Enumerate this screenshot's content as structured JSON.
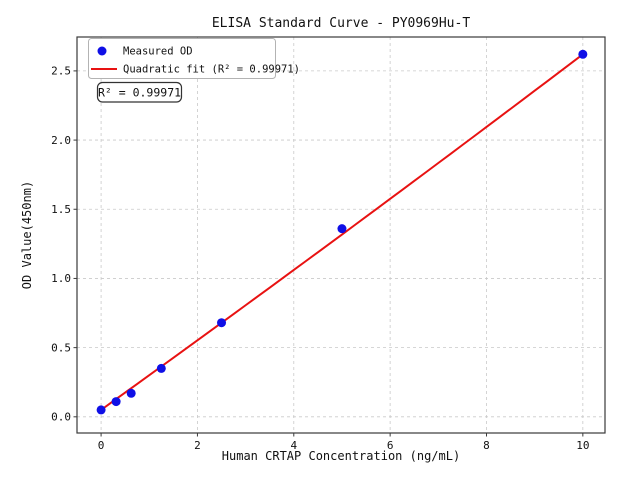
{
  "figure": {
    "title": "ELISA Standard Curve - PY0969Hu-T",
    "annotation": "R² = 0.99971",
    "legend": {
      "measured_label": "Measured OD",
      "fit_label": "Quadratic fit (R² = 0.99971)"
    }
  },
  "colors": {
    "point": "#0f0fe6",
    "fit_line": "#e81212",
    "grid": "#c9c9c9",
    "spine": "#3a3a3a",
    "legend_border": "#b3b3b3",
    "annotation_border": "#333333",
    "background": "#ffffff"
  },
  "chart_data": {
    "type": "scatter",
    "title": "ELISA Standard Curve - PY0969Hu-T",
    "xlabel": "Human CRTAP Concentration (ng/mL)",
    "ylabel": "OD Value(450nm)",
    "xlim": [
      -0.5,
      10.46
    ],
    "ylim": [
      -0.117,
      2.745
    ],
    "xticks": [
      0,
      2,
      4,
      6,
      8,
      10
    ],
    "yticks": [
      0,
      0.5,
      1,
      1.5,
      2,
      2.5
    ],
    "grid": true,
    "legend_position": "upper left",
    "annotation": "R² = 0.99971",
    "series": [
      {
        "name": "Measured OD",
        "type": "scatter",
        "color": "#0f0fe6",
        "x": [
          0,
          0.312,
          0.625,
          1.25,
          2.5,
          5,
          10
        ],
        "y": [
          0.05,
          0.11,
          0.17,
          0.35,
          0.68,
          1.36,
          2.62
        ]
      },
      {
        "name": "Quadratic fit (R² = 0.99971)",
        "type": "line",
        "color": "#e81212",
        "x_range": [
          0,
          10
        ],
        "fit_coefficients_est": [
          0.05,
          0.25,
          0.0007
        ],
        "r_squared": 0.99971
      }
    ]
  }
}
